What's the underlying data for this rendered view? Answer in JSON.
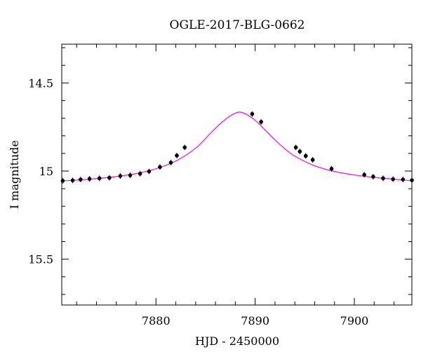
{
  "chart_data": {
    "type": "scatter",
    "title": "OGLE-2017-BLG-0662",
    "xlabel": "HJD - 2450000",
    "ylabel": "I magnitude",
    "xlim": [
      7870.5,
      7905.8
    ],
    "ylim": [
      15.76,
      14.28
    ],
    "y_inverted": true,
    "x_ticks": [
      {
        "value": 7880,
        "label": "7880"
      },
      {
        "value": 7890,
        "label": "7890"
      },
      {
        "value": 7900,
        "label": "7900"
      }
    ],
    "y_ticks": [
      {
        "value": 14.5,
        "label": "14.5"
      },
      {
        "value": 15,
        "label": "15"
      },
      {
        "value": 15.5,
        "label": "15.5"
      }
    ],
    "x_minor_step": 2,
    "y_minor_step": 0.1,
    "grid": false,
    "series": [
      {
        "kind": "points",
        "color": "#000000",
        "x": [
          7870.6,
          7871.6,
          7872.4,
          7873.3,
          7874.3,
          7875.3,
          7876.4,
          7877.4,
          7878.4,
          7879.3,
          7880.4,
          7881.5,
          7882.1,
          7882.9,
          7889.7,
          7890.6,
          7894.1,
          7894.5,
          7895.1,
          7895.8,
          7897.7,
          7901.0,
          7901.9,
          7902.9,
          7903.9,
          7904.9,
          7905.8
        ],
        "y": [
          15.055,
          15.053,
          15.048,
          15.044,
          15.041,
          15.038,
          15.028,
          15.024,
          15.015,
          15.002,
          14.977,
          14.952,
          14.912,
          14.866,
          14.676,
          14.721,
          14.866,
          14.889,
          14.914,
          14.936,
          14.987,
          15.021,
          15.032,
          15.041,
          15.046,
          15.048,
          15.052
        ]
      },
      {
        "kind": "model",
        "color": "#ff00ff",
        "x": [
          7870.5,
          7872,
          7874,
          7876,
          7878,
          7880,
          7882,
          7884,
          7885.5,
          7886.5,
          7887.5,
          7888.3,
          7889,
          7890,
          7891,
          7892,
          7893,
          7894,
          7896,
          7898,
          7900,
          7902,
          7904,
          7905.8
        ],
        "y": [
          15.056,
          15.051,
          15.043,
          15.031,
          15.014,
          14.987,
          14.943,
          14.87,
          14.785,
          14.73,
          14.687,
          14.666,
          14.675,
          14.712,
          14.766,
          14.823,
          14.874,
          14.915,
          14.97,
          15.002,
          15.022,
          15.036,
          15.046,
          15.055
        ]
      }
    ]
  }
}
